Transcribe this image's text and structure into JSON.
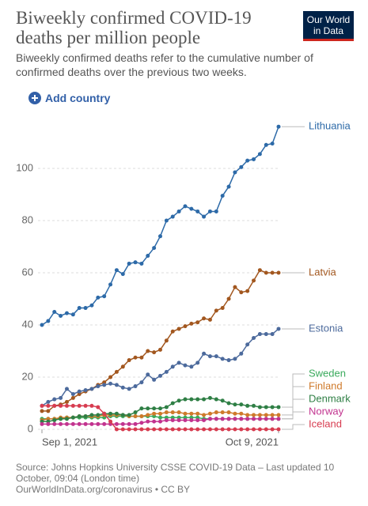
{
  "chart_data": {
    "type": "line",
    "title": "Biweekly confirmed COVID-19 deaths per million people",
    "subtitle": "Biweekly confirmed deaths refer to the cumulative number of confirmed deaths over the previous two weeks.",
    "logo": [
      "Our World",
      "in Data"
    ],
    "add_button": "Add country",
    "source": [
      "Source: Johns Hopkins University CSSE COVID-19 Data – Last updated 10 October, 09:04 (London time)",
      "OurWorldInData.org/coronavirus • CC BY"
    ],
    "x": [
      "Sep 1, 2021",
      "Sep 2, 2021",
      "Sep 3, 2021",
      "Sep 4, 2021",
      "Sep 5, 2021",
      "Sep 6, 2021",
      "Sep 7, 2021",
      "Sep 8, 2021",
      "Sep 9, 2021",
      "Sep 10, 2021",
      "Sep 11, 2021",
      "Sep 12, 2021",
      "Sep 13, 2021",
      "Sep 14, 2021",
      "Sep 15, 2021",
      "Sep 16, 2021",
      "Sep 17, 2021",
      "Sep 18, 2021",
      "Sep 19, 2021",
      "Sep 20, 2021",
      "Sep 21, 2021",
      "Sep 22, 2021",
      "Sep 23, 2021",
      "Sep 24, 2021",
      "Sep 25, 2021",
      "Sep 26, 2021",
      "Sep 27, 2021",
      "Sep 28, 2021",
      "Sep 29, 2021",
      "Sep 30, 2021",
      "Oct 1, 2021",
      "Oct 2, 2021",
      "Oct 3, 2021",
      "Oct 4, 2021",
      "Oct 5, 2021",
      "Oct 6, 2021",
      "Oct 7, 2021",
      "Oct 8, 2021",
      "Oct 9, 2021"
    ],
    "xtick_indices_shown": [
      0,
      38
    ],
    "ylim": [
      0,
      120
    ],
    "yticks": [
      0,
      20,
      40,
      60,
      80,
      100
    ],
    "grid": true,
    "series": [
      {
        "name": "Lithuania",
        "color": "#2d6aa8",
        "values": [
          40,
          41.5,
          45,
          43.5,
          44.5,
          44,
          46.5,
          46.5,
          47.5,
          50.5,
          51,
          55.5,
          61,
          59.5,
          63.5,
          64,
          63.5,
          66.5,
          69.5,
          74,
          80,
          81.5,
          83.5,
          85.5,
          84.5,
          83.5,
          81.5,
          83.5,
          83.5,
          89.5,
          93,
          98.5,
          100.5,
          103,
          103.5,
          105.5,
          109,
          109.5,
          116
        ]
      },
      {
        "name": "Latvia",
        "color": "#a2571f",
        "values": [
          7,
          7,
          9,
          9.5,
          10.5,
          12,
          13.5,
          14.5,
          15.5,
          17,
          18,
          20,
          22,
          24,
          26.5,
          27.5,
          27.5,
          30,
          29.5,
          30.5,
          34,
          37.5,
          38.5,
          39.5,
          40.5,
          41,
          42.5,
          42,
          45.5,
          46.5,
          50,
          54.5,
          52.5,
          53,
          57,
          61,
          60,
          60,
          60
        ]
      },
      {
        "name": "Estonia",
        "color": "#4c6a9c",
        "values": [
          9,
          10.5,
          11.5,
          12,
          15.5,
          13.5,
          14.5,
          15,
          15.5,
          16.5,
          17,
          17.5,
          17,
          16,
          15.5,
          16.5,
          18,
          21,
          19,
          20.5,
          22,
          24,
          25.5,
          24.5,
          24,
          25.5,
          29,
          28,
          28,
          27,
          26.5,
          27,
          29,
          32.5,
          35,
          36.5,
          36.5,
          36.5,
          38.5
        ]
      },
      {
        "name": "Sweden",
        "color": "#3aaa5c",
        "values": [
          4,
          4,
          4,
          4,
          4.5,
          4.5,
          4.5,
          4.5,
          4.5,
          4.5,
          4.5,
          5,
          5,
          5,
          5,
          5,
          5,
          5,
          5,
          4.5,
          4.5,
          4.5,
          4.5,
          4.5,
          4.5,
          4.5,
          4,
          4,
          4,
          4,
          4,
          4,
          4,
          4,
          4,
          4,
          4,
          4,
          4
        ]
      },
      {
        "name": "Finland",
        "color": "#cf7a2b",
        "values": [
          3.5,
          4,
          4,
          4.5,
          4.5,
          4.5,
          5,
          5,
          5,
          5,
          5.5,
          5.5,
          5.5,
          5.5,
          5,
          5,
          5,
          5.5,
          6,
          6,
          6.5,
          6.5,
          6.5,
          6,
          6,
          6,
          5.5,
          6,
          6.5,
          6.5,
          6.5,
          6,
          6,
          5.5,
          5.5,
          5.5,
          5.5,
          5.5,
          5.5
        ]
      },
      {
        "name": "Denmark",
        "color": "#2f7f45",
        "values": [
          3,
          3,
          3.5,
          4,
          4,
          4.5,
          5,
          5,
          5.5,
          5.5,
          6,
          6,
          6,
          5.5,
          5.5,
          6.5,
          8,
          8,
          8,
          8,
          8.5,
          10,
          11,
          11.5,
          11.5,
          11.5,
          11.5,
          12,
          11.5,
          11,
          10,
          9.5,
          9.5,
          9,
          9,
          8.5,
          8.5,
          8.5,
          8.5
        ]
      },
      {
        "name": "Norway",
        "color": "#c2338f",
        "values": [
          2,
          2,
          2,
          2,
          2,
          2,
          2,
          2,
          2,
          2,
          2,
          2,
          2,
          2,
          2,
          2,
          2.5,
          3,
          3,
          3,
          3.5,
          3.5,
          3.5,
          3.5,
          3.5,
          3.5,
          3.5,
          4,
          4,
          4,
          4,
          4,
          4,
          4,
          4,
          4,
          4,
          4,
          4
        ]
      },
      {
        "name": "Iceland",
        "color": "#d73c50",
        "values": [
          9,
          9,
          9,
          9,
          9,
          9,
          9,
          9,
          9,
          8.5,
          6,
          3,
          0,
          0,
          0,
          0,
          0,
          0,
          0,
          0,
          0,
          0,
          0,
          0,
          0,
          0,
          0,
          0,
          0,
          0,
          0,
          0,
          0,
          0,
          0,
          0,
          0,
          0,
          0
        ]
      }
    ]
  }
}
